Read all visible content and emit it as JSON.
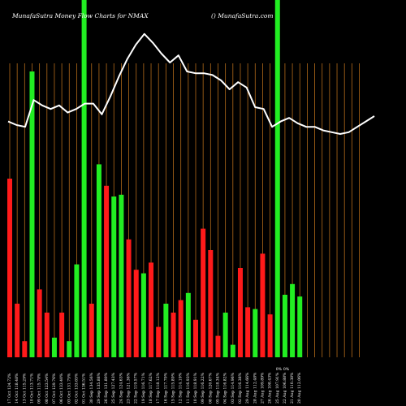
{
  "header": {
    "title": "MunafaSutra  Money Flow  Charts for NMAX",
    "site": "() MunafaSutra.com"
  },
  "colors": {
    "background": "#000000",
    "up": "#22ee22",
    "down": "#ff1a1a",
    "line": "#ffffff",
    "grid": "#b36b1a",
    "text": "#ffffff"
  },
  "chart_data": {
    "type": "bar",
    "title": "MunafaSutra  Money Flow  Charts for NMAX",
    "ylim": [
      0,
      100
    ],
    "bars": [
      {
        "label": "17 Oct 124.72%",
        "value": 50,
        "color": "red"
      },
      {
        "label": "14 Oct 118.48%",
        "value": 15,
        "color": "red"
      },
      {
        "label": "13 Oct 115.29%",
        "value": 4.5,
        "color": "red"
      },
      {
        "label": "10 Oct 113.71%",
        "value": 80,
        "color": "green"
      },
      {
        "label": "09 Oct 115.78%",
        "value": 19,
        "color": "red"
      },
      {
        "label": "08 Oct 123.54%",
        "value": 12.5,
        "color": "red"
      },
      {
        "label": "07 Oct 129.76%",
        "value": 5.5,
        "color": "green"
      },
      {
        "label": "06 Oct 133.40%",
        "value": 12.5,
        "color": "red"
      },
      {
        "label": "03 Oct 131.75%",
        "value": 4.5,
        "color": "green"
      },
      {
        "label": "02 Oct 133.65%",
        "value": 26,
        "color": "green"
      },
      {
        "label": "01 Oct 136.51%",
        "value": 100,
        "color": "green"
      },
      {
        "label": "30 Sep 134.56%",
        "value": 15,
        "color": "red"
      },
      {
        "label": "29 Sep 135.88%",
        "value": 54,
        "color": "green"
      },
      {
        "label": "26 Sep 131.80%",
        "value": 48,
        "color": "red"
      },
      {
        "label": "25 Sep 127.43%",
        "value": 45,
        "color": "green"
      },
      {
        "label": "24 Sep 124.63%",
        "value": 45.5,
        "color": "green"
      },
      {
        "label": "23 Sep 121.36%",
        "value": 33,
        "color": "red"
      },
      {
        "label": "22 Sep 119.57%",
        "value": 24.5,
        "color": "red"
      },
      {
        "label": "19 Sep 116.71%",
        "value": 23.5,
        "color": "green"
      },
      {
        "label": "18 Sep 117.62%",
        "value": 26.5,
        "color": "red"
      },
      {
        "label": "17 Sep 118.12%",
        "value": 8.5,
        "color": "red"
      },
      {
        "label": "16 Sep 117.70%",
        "value": 15,
        "color": "green"
      },
      {
        "label": "15 Sep 115.89%",
        "value": 12.5,
        "color": "red"
      },
      {
        "label": "12 Sep 114.19%",
        "value": 16,
        "color": "red"
      },
      {
        "label": "11 Sep 116.93%",
        "value": 18,
        "color": "green"
      },
      {
        "label": "10 Sep 118.91%",
        "value": 10.5,
        "color": "red"
      },
      {
        "label": "09 Sep 116.22%",
        "value": 36,
        "color": "red"
      },
      {
        "label": "08 Sep 120.67%",
        "value": 30,
        "color": "red"
      },
      {
        "label": "05 Sep 118.34%",
        "value": 6,
        "color": "red"
      },
      {
        "label": "04 Sep 116.82%",
        "value": 12.5,
        "color": "green"
      },
      {
        "label": "03 Sep 114.96%",
        "value": 3.5,
        "color": "green"
      },
      {
        "label": "02 Sep 116.38%",
        "value": 25,
        "color": "red"
      },
      {
        "label": "29 Aug 114.66%",
        "value": 14,
        "color": "red"
      },
      {
        "label": "28 Aug 112.48%",
        "value": 13.5,
        "color": "green"
      },
      {
        "label": "27 Aug 109.89%",
        "value": 29,
        "color": "red"
      },
      {
        "label": "26 Aug 108.43%",
        "value": 12,
        "color": "red"
      },
      {
        "label": "25 Aug 107.91%",
        "value": 100,
        "color": "green"
      },
      {
        "label": "22 Aug 106.88%",
        "value": 17.5,
        "color": "green"
      },
      {
        "label": "21 Aug 110.38%",
        "value": 20.5,
        "color": "green"
      },
      {
        "label": "20 Aug 112.06%",
        "value": 17,
        "color": "green"
      }
    ],
    "line": [
      66,
      65,
      64.5,
      72,
      70.5,
      69.5,
      70.5,
      68.5,
      69.5,
      71,
      71,
      68,
      73,
      78.5,
      83.5,
      87.5,
      90.5,
      88,
      85,
      82.5,
      84.5,
      80,
      79.5,
      79.5,
      79,
      77.5,
      75,
      77,
      75.5,
      70,
      69.5,
      64.5,
      66,
      67,
      65.5,
      64.5,
      64.5,
      63.5,
      63,
      62.5,
      63,
      64.5,
      66,
      67.5
    ],
    "markers": [
      {
        "bar": 36,
        "text": "0%"
      },
      {
        "bar": 37,
        "text": "0%"
      }
    ],
    "grid": true
  }
}
